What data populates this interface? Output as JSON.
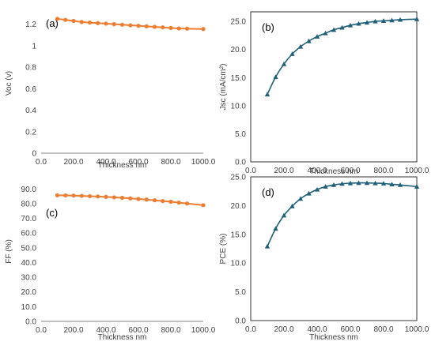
{
  "colors": {
    "orange": "#ED7D31",
    "blue": "#1F5F7A"
  },
  "chart_data": [
    {
      "panel": "(a)",
      "type": "line",
      "marker": "circle",
      "color": "#ED7D31",
      "xlabel": "Thickness nm",
      "ylabel": "Voc (v)",
      "xlim": [
        0,
        1000
      ],
      "ylim": [
        0,
        1.3
      ],
      "xticks": [
        0,
        200,
        400,
        600,
        800,
        1000
      ],
      "xtick_labels": [
        "0.0",
        "200.0",
        "400.0",
        "600.0",
        "800.0",
        "1000.0"
      ],
      "yticks": [
        0,
        0.2,
        0.4,
        0.6,
        0.8,
        1.0,
        1.2
      ],
      "ytick_labels": [
        "0",
        "0.2",
        "0.4",
        "0.6",
        "0.8",
        "1",
        "1.2"
      ],
      "border": false,
      "x": [
        100,
        150,
        200,
        250,
        300,
        350,
        400,
        450,
        500,
        550,
        600,
        650,
        700,
        750,
        800,
        850,
        900,
        1000
      ],
      "y": [
        1.25,
        1.24,
        1.23,
        1.22,
        1.215,
        1.21,
        1.205,
        1.2,
        1.195,
        1.19,
        1.185,
        1.18,
        1.175,
        1.17,
        1.165,
        1.16,
        1.158,
        1.155
      ]
    },
    {
      "panel": "(b)",
      "type": "line",
      "marker": "triangle",
      "color": "#1F5F7A",
      "xlabel": "Thickness nm",
      "ylabel": "Jsc (mA/cm²)",
      "xlim": [
        0,
        1000
      ],
      "ylim": [
        0,
        26.7
      ],
      "xticks": [
        0,
        200,
        400,
        600,
        800,
        1000
      ],
      "xtick_labels": [
        "0.0",
        "200.0",
        "400.0",
        "600.0",
        "800.0",
        "1000.0"
      ],
      "yticks": [
        0,
        5,
        10,
        15,
        20,
        25
      ],
      "ytick_labels": [
        "0.0",
        "5.0",
        "10.0",
        "15.0",
        "20.0",
        "25.0"
      ],
      "border": true,
      "x": [
        100,
        150,
        200,
        250,
        300,
        350,
        400,
        450,
        500,
        550,
        600,
        650,
        700,
        750,
        800,
        850,
        900,
        1000
      ],
      "y": [
        12.0,
        15.1,
        17.4,
        19.2,
        20.5,
        21.5,
        22.3,
        22.9,
        23.5,
        23.9,
        24.3,
        24.6,
        24.8,
        25.0,
        25.1,
        25.2,
        25.3,
        25.4
      ]
    },
    {
      "panel": "(c)",
      "type": "line",
      "marker": "circle",
      "color": "#ED7D31",
      "xlabel": "Thickness nm",
      "ylabel": "FF (%)",
      "xlim": [
        0,
        1000
      ],
      "ylim": [
        0,
        95
      ],
      "xticks": [
        0,
        200,
        400,
        600,
        800,
        1000
      ],
      "xtick_labels": [
        "0.0",
        "200.0",
        "400.0",
        "600.0",
        "800.0",
        "1000.0"
      ],
      "yticks": [
        0,
        10,
        20,
        30,
        40,
        50,
        60,
        70,
        80,
        90
      ],
      "ytick_labels": [
        "0.0",
        "10.0",
        "20.0",
        "30.0",
        "40.0",
        "50.0",
        "60.0",
        "70.0",
        "80.0",
        "90.0"
      ],
      "border": false,
      "x": [
        100,
        150,
        200,
        250,
        300,
        350,
        400,
        450,
        500,
        550,
        600,
        650,
        700,
        750,
        800,
        850,
        900,
        1000
      ],
      "y": [
        85.7,
        85.6,
        85.5,
        85.3,
        85.1,
        84.9,
        84.6,
        84.3,
        84.0,
        83.6,
        83.2,
        82.8,
        82.3,
        81.8,
        81.3,
        80.7,
        80.1,
        79.0
      ]
    },
    {
      "panel": "(d)",
      "type": "line",
      "marker": "triangle",
      "color": "#1F5F7A",
      "xlabel": "Thickness nm",
      "ylabel": "PCE (%)",
      "xlim": [
        0,
        1000
      ],
      "ylim": [
        0,
        25
      ],
      "xticks": [
        0,
        200,
        400,
        600,
        800,
        1000
      ],
      "xtick_labels": [
        "0.0",
        "200.0",
        "400.0",
        "600.0",
        "800.0",
        "1000.0"
      ],
      "yticks": [
        0,
        5,
        10,
        15,
        20,
        25
      ],
      "ytick_labels": [
        "0.0",
        "5.0",
        "10.0",
        "15.0",
        "20.0",
        "25.0"
      ],
      "border": true,
      "x": [
        100,
        150,
        200,
        250,
        300,
        350,
        400,
        450,
        500,
        550,
        600,
        650,
        700,
        750,
        800,
        850,
        900,
        1000
      ],
      "y": [
        12.9,
        16.0,
        18.3,
        19.9,
        21.2,
        22.1,
        22.8,
        23.3,
        23.6,
        23.8,
        23.9,
        23.95,
        23.95,
        23.9,
        23.85,
        23.7,
        23.6,
        23.3
      ]
    }
  ]
}
